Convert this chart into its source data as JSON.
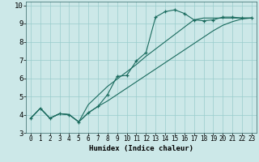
{
  "xlabel": "Humidex (Indice chaleur)",
  "bg_color": "#cce8e8",
  "grid_color": "#99cccc",
  "line_color": "#1a6b5e",
  "xlim": [
    -0.5,
    23.5
  ],
  "ylim": [
    3,
    10.2
  ],
  "xticks": [
    0,
    1,
    2,
    3,
    4,
    5,
    6,
    7,
    8,
    9,
    10,
    11,
    12,
    13,
    14,
    15,
    16,
    17,
    18,
    19,
    20,
    21,
    22,
    23
  ],
  "yticks": [
    3,
    4,
    5,
    6,
    7,
    8,
    9,
    10
  ],
  "curve1_x": [
    0,
    1,
    2,
    3,
    4,
    5,
    6,
    7,
    8,
    9,
    10,
    11,
    12,
    13,
    14,
    15,
    16,
    17,
    18,
    19,
    20,
    21,
    22,
    23
  ],
  "curve1_y": [
    3.8,
    4.35,
    3.8,
    4.05,
    4.0,
    3.6,
    4.1,
    4.45,
    5.1,
    6.1,
    6.15,
    6.95,
    7.4,
    9.35,
    9.65,
    9.75,
    9.55,
    9.2,
    9.15,
    9.2,
    9.35,
    9.35,
    9.3,
    9.3
  ],
  "curve2_x": [
    0,
    1,
    2,
    3,
    4,
    5,
    6,
    7,
    8,
    9,
    10,
    11,
    12,
    13,
    14,
    15,
    16,
    17,
    18,
    19,
    20,
    21,
    22,
    23
  ],
  "curve2_y": [
    3.8,
    4.35,
    3.8,
    4.05,
    4.0,
    3.6,
    4.55,
    5.05,
    5.55,
    5.95,
    6.35,
    6.75,
    7.2,
    7.6,
    8.0,
    8.4,
    8.8,
    9.2,
    9.3,
    9.3,
    9.3,
    9.3,
    9.3,
    9.3
  ],
  "curve3_x": [
    0,
    1,
    2,
    3,
    4,
    5,
    6,
    7,
    8,
    9,
    10,
    11,
    12,
    13,
    14,
    15,
    16,
    17,
    18,
    19,
    20,
    21,
    22,
    23
  ],
  "curve3_y": [
    3.8,
    4.35,
    3.8,
    4.05,
    4.0,
    3.6,
    4.1,
    4.45,
    4.75,
    5.1,
    5.45,
    5.8,
    6.15,
    6.5,
    6.85,
    7.2,
    7.55,
    7.9,
    8.25,
    8.6,
    8.9,
    9.1,
    9.25,
    9.3
  ],
  "xlabel_fontsize": 6.5,
  "tick_fontsize": 5.5,
  "ytick_fontsize": 6.5
}
